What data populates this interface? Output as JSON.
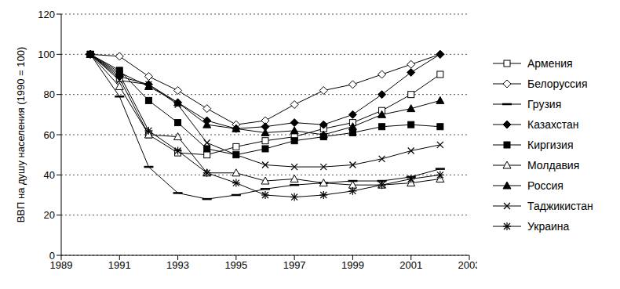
{
  "chart_data": {
    "type": "line",
    "y_label": "ВВП на душу населения (1990 = 100)",
    "x": [
      1990,
      1991,
      1992,
      1993,
      1994,
      1995,
      1996,
      1997,
      1998,
      1999,
      2000,
      2001,
      2002
    ],
    "xlim": [
      1989,
      2003
    ],
    "xticks": [
      1989,
      1991,
      1993,
      1995,
      1997,
      1999,
      2001,
      2003
    ],
    "ylim": [
      0,
      120
    ],
    "yticks": [
      0,
      20,
      40,
      60,
      80,
      100,
      120
    ],
    "grid": true,
    "legend": "right",
    "series": [
      {
        "name": "Армения",
        "color": "#000000",
        "marker": "square-open",
        "values": [
          100,
          88,
          60,
          51,
          50,
          54,
          57,
          59,
          63,
          66,
          72,
          80,
          90
        ]
      },
      {
        "name": "Белоруссия",
        "color": "#000000",
        "marker": "diamond-open",
        "values": [
          100,
          99,
          89,
          82,
          73,
          65,
          67,
          75,
          82,
          85,
          90,
          95,
          100
        ]
      },
      {
        "name": "Грузия",
        "color": "#000000",
        "marker": "dash",
        "values": [
          100,
          79,
          44,
          31,
          28,
          30,
          33,
          35,
          36,
          37,
          37,
          39,
          43
        ]
      },
      {
        "name": "Казахстан",
        "color": "#000000",
        "marker": "diamond",
        "values": [
          100,
          89,
          85,
          76,
          67,
          63,
          64,
          66,
          65,
          70,
          80,
          91,
          100
        ]
      },
      {
        "name": "Киргизия",
        "color": "#000000",
        "marker": "square",
        "values": [
          100,
          92,
          77,
          66,
          53,
          50,
          53,
          57,
          59,
          61,
          64,
          65,
          64
        ]
      },
      {
        "name": "Молдавия",
        "color": "#000000",
        "marker": "triangle-open",
        "values": [
          100,
          84,
          60,
          59,
          41,
          41,
          37,
          38,
          36,
          35,
          35,
          36,
          38
        ]
      },
      {
        "name": "Россия",
        "color": "#000000",
        "marker": "triangle",
        "values": [
          100,
          91,
          84,
          76,
          65,
          63,
          61,
          62,
          60,
          64,
          70,
          73,
          77
        ]
      },
      {
        "name": "Таджикистан",
        "color": "#000000",
        "marker": "x",
        "values": [
          100,
          87,
          85,
          75,
          56,
          50,
          45,
          44,
          44,
          45,
          48,
          52,
          55
        ]
      },
      {
        "name": "Украина",
        "color": "#000000",
        "marker": "asterisk",
        "values": [
          100,
          90,
          62,
          52,
          41,
          36,
          30,
          29,
          30,
          32,
          35,
          38,
          40
        ]
      }
    ]
  }
}
